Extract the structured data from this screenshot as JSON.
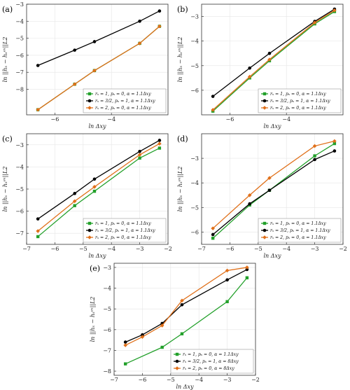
{
  "colors": {
    "green": "#22a02a",
    "black": "#000000",
    "orange": "#e0701a"
  },
  "chart_data": [
    {
      "type": "line",
      "panel_label": "(a)",
      "xlabel": "ln Δxy",
      "ylabel": "ln ||hₛ − hₛᵉˣ||L2",
      "xlim": [
        -7,
        -2
      ],
      "ylim": [
        -9.5,
        -3
      ],
      "xticks": [
        "−6",
        "−4"
      ],
      "yticks": [
        "−8",
        "−7",
        "−6",
        "−5",
        "−4",
        "−3"
      ],
      "x": [
        -6.6,
        -5.3,
        -4.6,
        -3.0,
        -2.3
      ],
      "legend_position": "bottom-right",
      "series": [
        {
          "name": "rₛ = 1, pₛ = 0, α = 1.1Δxy",
          "color": "green",
          "marker": "square",
          "values": [
            -9.2,
            -7.7,
            -6.9,
            -5.3,
            -4.3
          ]
        },
        {
          "name": "rₛ = 3/2, pₛ = 1, α = 1.1Δxy",
          "color": "black",
          "marker": "circle",
          "values": [
            -6.6,
            -5.7,
            -5.2,
            -4.0,
            -3.4
          ]
        },
        {
          "name": "rₛ = 2, pₛ = 0, α = 1.1Δxy",
          "color": "orange",
          "marker": "diamond",
          "values": [
            -9.2,
            -7.7,
            -6.9,
            -5.3,
            -4.3
          ]
        }
      ]
    },
    {
      "type": "line",
      "panel_label": "(b)",
      "xlabel": "ln Δxy",
      "ylabel": "ln ||hₛ − hₛᵉˣ||L2",
      "xlim": [
        -7,
        -2
      ],
      "ylim": [
        -7,
        -2.5
      ],
      "xticks": [
        "−6",
        "−4"
      ],
      "yticks": [
        "−6",
        "−5",
        "−4",
        "−3"
      ],
      "x": [
        -6.6,
        -5.3,
        -4.6,
        -3.0,
        -2.3
      ],
      "legend_position": "bottom-right",
      "series": [
        {
          "name": "rₛ = 1, pₛ = 0, α = 1.1Δxy",
          "color": "green",
          "marker": "square",
          "values": [
            -6.85,
            -5.5,
            -4.8,
            -3.3,
            -2.8
          ]
        },
        {
          "name": "rₛ = 3/2, pₛ = 1, α = 1.1Δxy",
          "color": "black",
          "marker": "circle",
          "values": [
            -6.25,
            -5.1,
            -4.5,
            -3.2,
            -2.7
          ]
        },
        {
          "name": "rₛ = 2, pₛ = 0, α = 1.1Δxy",
          "color": "orange",
          "marker": "diamond",
          "values": [
            -6.8,
            -5.45,
            -4.75,
            -3.25,
            -2.75
          ]
        }
      ]
    },
    {
      "type": "line",
      "panel_label": "(c)",
      "xlabel": "ln Δxy",
      "ylabel": "ln ||hₛ − hₛᵉˣ||L2",
      "xlim": [
        -7,
        -2
      ],
      "ylim": [
        -7.5,
        -2.5
      ],
      "xticks": [
        "−7",
        "−6",
        "−5",
        "−4",
        "−3",
        "−2"
      ],
      "yticks": [
        "−7",
        "−6",
        "−5",
        "−4",
        "−3"
      ],
      "x": [
        -6.6,
        -5.3,
        -4.6,
        -3.0,
        -2.3
      ],
      "legend_position": "bottom-right",
      "series": [
        {
          "name": "rₛ = 1, pₛ = 0, α = 1.1Δxy",
          "color": "green",
          "marker": "square",
          "values": [
            -7.15,
            -5.75,
            -5.1,
            -3.6,
            -3.15
          ]
        },
        {
          "name": "rₛ = 3/2, pₛ = 1, α = 1.1Δxy",
          "color": "black",
          "marker": "circle",
          "values": [
            -6.35,
            -5.2,
            -4.55,
            -3.3,
            -2.8
          ]
        },
        {
          "name": "rₛ = 2, pₛ = 0, α = 1.1Δxy",
          "color": "orange",
          "marker": "diamond",
          "values": [
            -6.9,
            -5.55,
            -4.9,
            -3.45,
            -2.95
          ]
        }
      ]
    },
    {
      "type": "line",
      "panel_label": "(d)",
      "xlabel": "ln Δxy",
      "ylabel": "ln ||hₛ − hₛᵉˣ||L2",
      "xlim": [
        -7,
        -2
      ],
      "ylim": [
        -6.5,
        -2
      ],
      "xticks": [
        "−7",
        "−6",
        "−5",
        "−4",
        "−3",
        "−2"
      ],
      "yticks": [
        "−6",
        "−5",
        "−4",
        "−3"
      ],
      "x": [
        -6.6,
        -5.3,
        -4.6,
        -3.0,
        -2.3
      ],
      "legend_position": "bottom-right",
      "series": [
        {
          "name": "rₛ = 1, pₛ = 0, α = 1.1Δxy",
          "color": "green",
          "marker": "square",
          "values": [
            -6.25,
            -4.9,
            -4.3,
            -2.9,
            -2.4
          ]
        },
        {
          "name": "rₛ = 3/2, pₛ = 1, α = 1.1Δxy",
          "color": "black",
          "marker": "circle",
          "values": [
            -6.1,
            -4.85,
            -4.3,
            -3.05,
            -2.7
          ]
        },
        {
          "name": "rₛ = 2, pₛ = 0, α = 1.1Δxy",
          "color": "orange",
          "marker": "diamond",
          "values": [
            -5.85,
            -4.5,
            -3.8,
            -2.5,
            -2.3
          ]
        }
      ]
    },
    {
      "type": "line",
      "panel_label": "(e)",
      "xlabel": "ln Δxy",
      "ylabel": "ln ||hₛ − hₛᵉˣ||L2",
      "xlim": [
        -7,
        -2
      ],
      "ylim": [
        -8.2,
        -2.8
      ],
      "xticks": [
        "−7",
        "−6",
        "−5",
        "−4",
        "−3",
        "−2"
      ],
      "yticks": [
        "−8",
        "−7",
        "−6",
        "−5",
        "−4",
        "−3"
      ],
      "legend_position": "bottom-right",
      "series": [
        {
          "name": "rₛ = 1, pₛ = 0, α = 1.1Δxy",
          "color": "green",
          "marker": "square",
          "x": [
            -6.6,
            -5.3,
            -4.6,
            -3.0,
            -2.3
          ],
          "values": [
            -7.65,
            -6.85,
            -6.2,
            -4.65,
            -3.5
          ]
        },
        {
          "name": "rₛ = 3/2, pₛ = 1, α = 8Δxy",
          "color": "black",
          "marker": "circle",
          "x": [
            -6.6,
            -6.0,
            -5.3,
            -4.6,
            -3.0,
            -2.3
          ],
          "values": [
            -6.6,
            -6.25,
            -5.7,
            -4.8,
            -3.6,
            -3.1
          ]
        },
        {
          "name": "rₛ = 2, pₛ = 0, α = 8Δxy",
          "color": "orange",
          "marker": "diamond",
          "x": [
            -6.6,
            -6.0,
            -5.3,
            -4.6,
            -3.0,
            -2.3
          ],
          "values": [
            -6.75,
            -6.35,
            -5.8,
            -4.6,
            -3.15,
            -3.0
          ]
        }
      ]
    }
  ]
}
